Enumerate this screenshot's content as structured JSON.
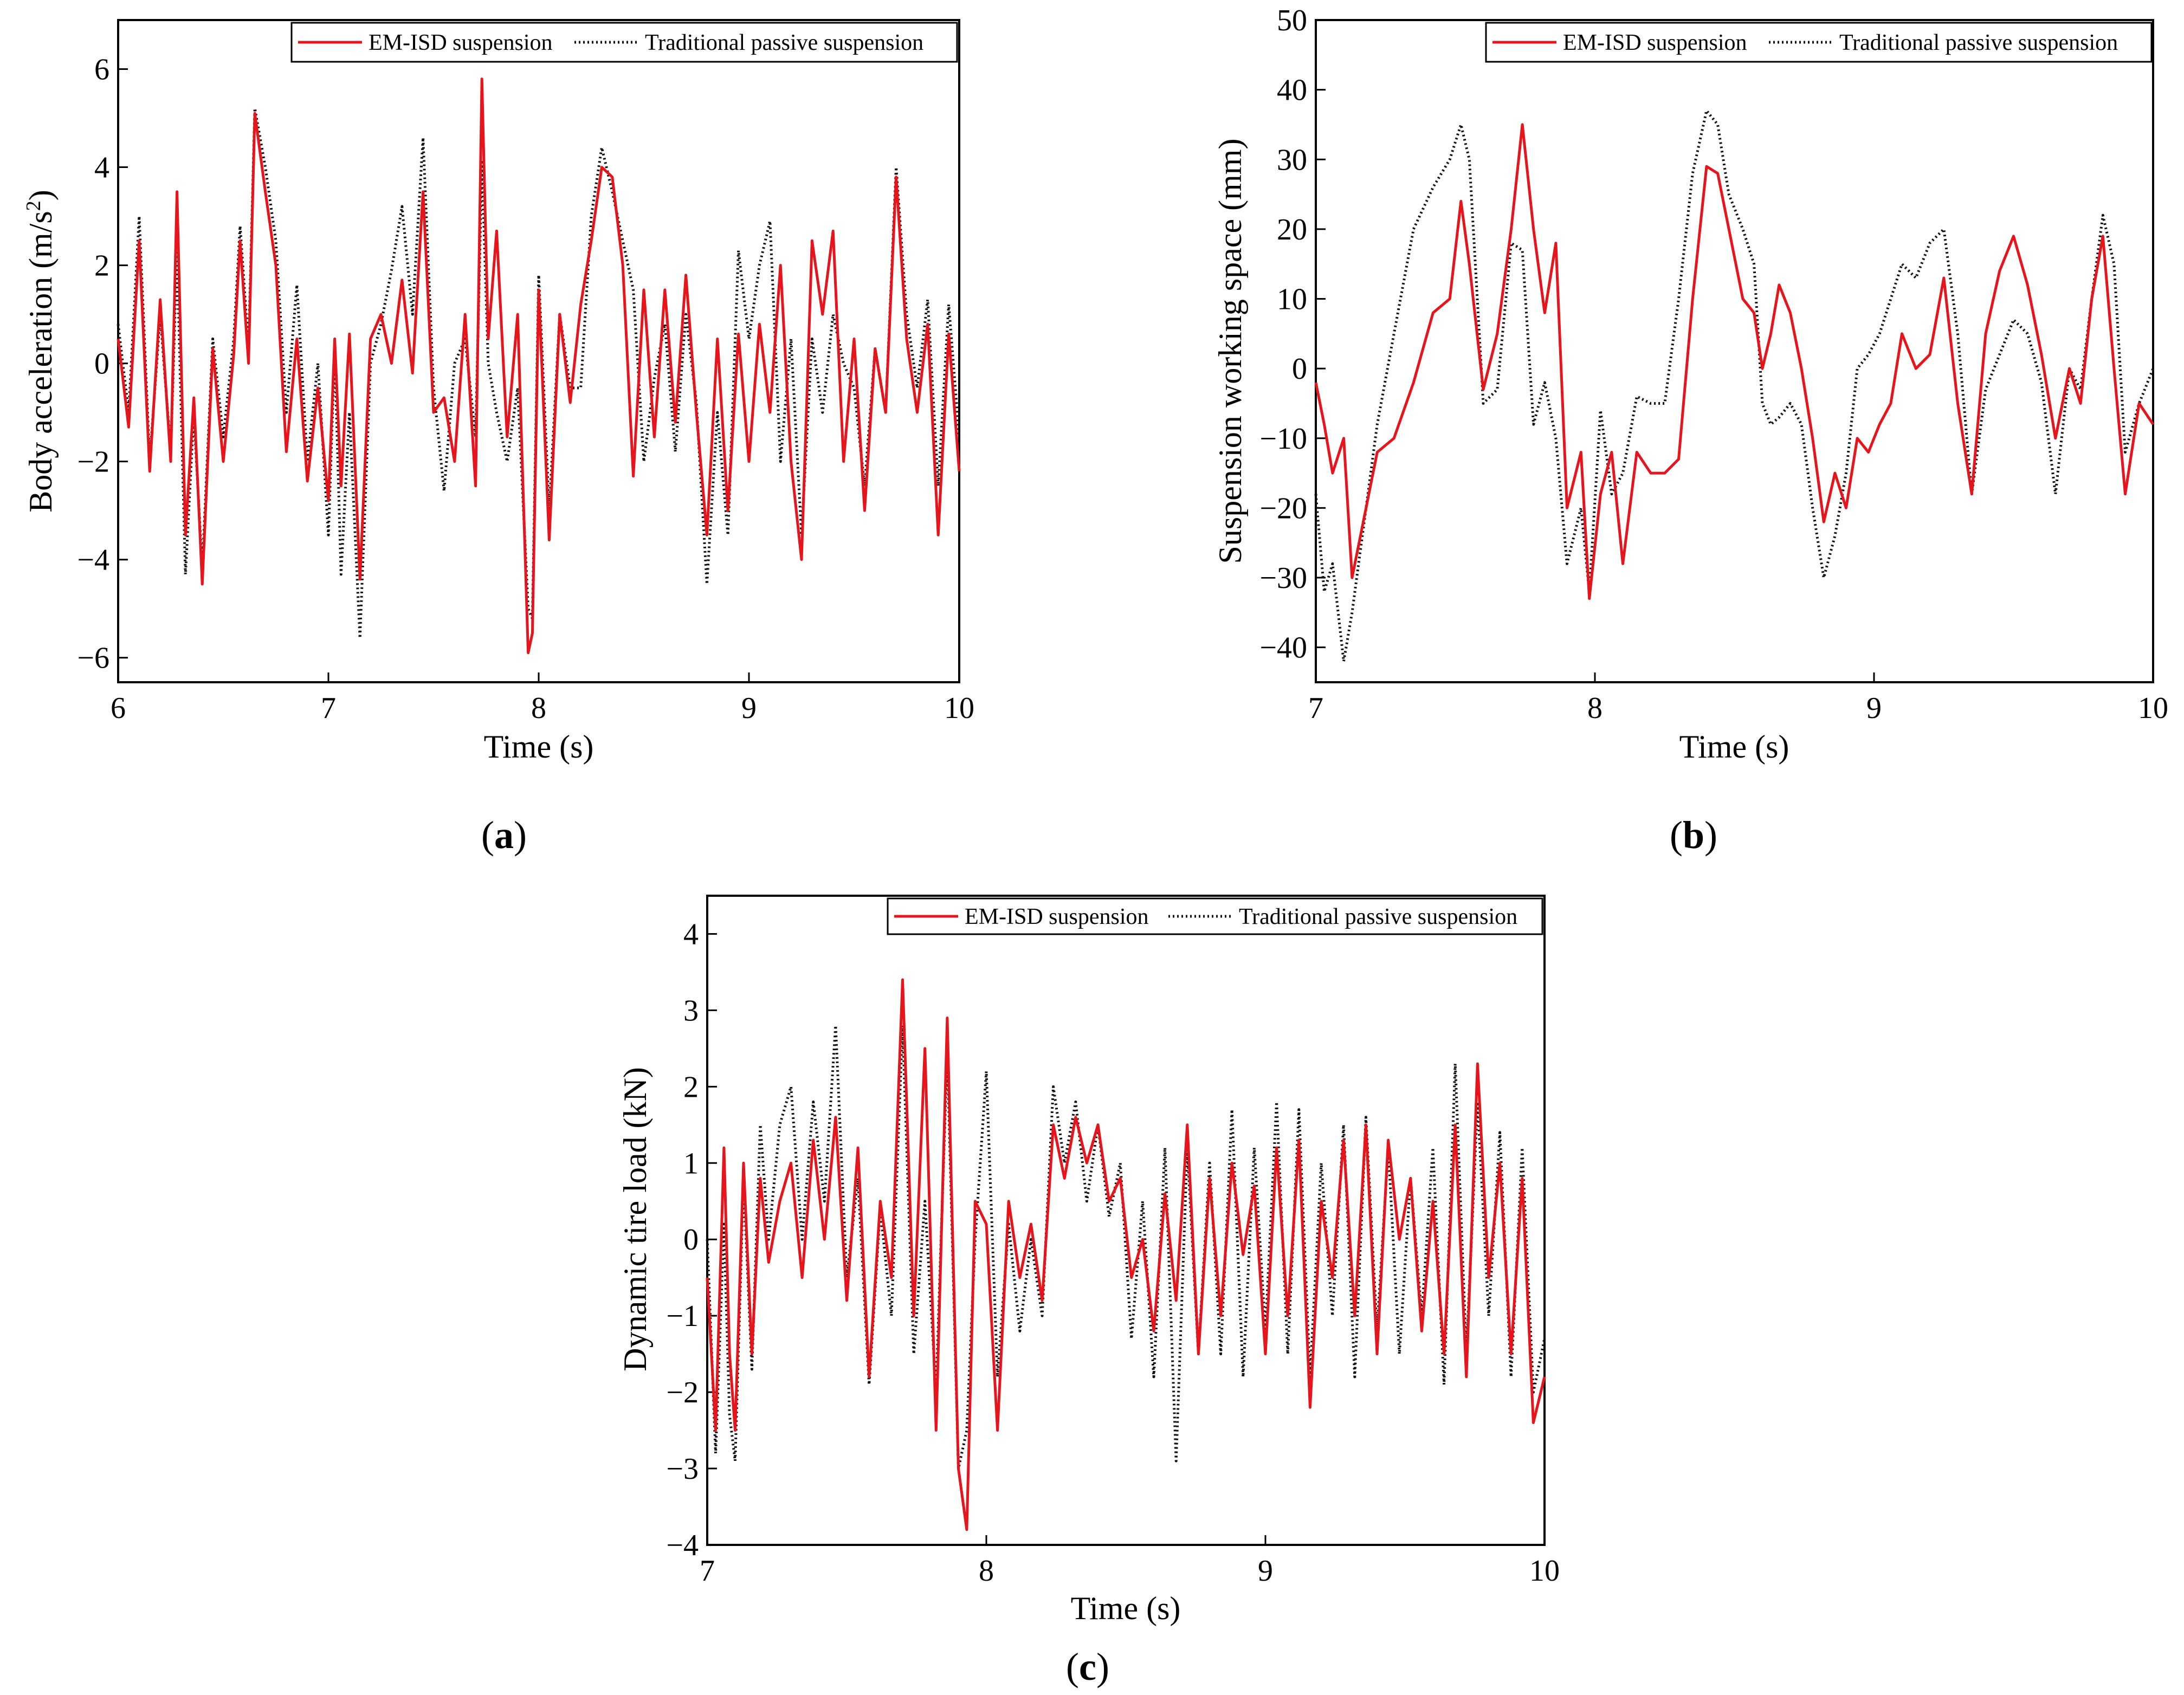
{
  "legend": {
    "em_label": "EM-ISD suspension",
    "tp_label": "Traditional passive suspension",
    "em_color": "#e8141b",
    "tp_color": "#111111"
  },
  "chart_data": [
    {
      "id": "a",
      "type": "line",
      "caption_letter": "a",
      "xlabel": "Time (s)",
      "ylabel_prefix": "Body acceleration (m/s",
      "ylabel_sup": "2",
      "ylabel_suffix": ")",
      "xlim": [
        6,
        10
      ],
      "ylim": [
        -6.5,
        7
      ],
      "xticks": [
        "6",
        "7",
        "8",
        "9",
        "10"
      ],
      "yticks": [
        "−6",
        "−4",
        "−2",
        "0",
        "2",
        "4",
        "6"
      ],
      "ytick_values": [
        -6,
        -4,
        -2,
        0,
        2,
        4,
        6
      ],
      "xtick_values": [
        6,
        7,
        8,
        9,
        10
      ],
      "legend_position": "top-right",
      "series": [
        {
          "name": "EM-ISD suspension",
          "x": [
            6.0,
            6.05,
            6.1,
            6.15,
            6.2,
            6.25,
            6.28,
            6.32,
            6.36,
            6.4,
            6.45,
            6.5,
            6.55,
            6.58,
            6.62,
            6.65,
            6.7,
            6.75,
            6.8,
            6.85,
            6.9,
            6.95,
            7.0,
            7.03,
            7.06,
            7.1,
            7.15,
            7.2,
            7.25,
            7.3,
            7.35,
            7.4,
            7.45,
            7.5,
            7.55,
            7.6,
            7.65,
            7.7,
            7.73,
            7.76,
            7.8,
            7.85,
            7.9,
            7.95,
            7.97,
            8.0,
            8.05,
            8.1,
            8.15,
            8.2,
            8.25,
            8.3,
            8.35,
            8.4,
            8.45,
            8.5,
            8.55,
            8.6,
            8.65,
            8.7,
            8.75,
            8.8,
            8.85,
            8.9,
            8.95,
            9.0,
            9.05,
            9.1,
            9.15,
            9.2,
            9.25,
            9.3,
            9.35,
            9.4,
            9.45,
            9.5,
            9.55,
            9.6,
            9.65,
            9.7,
            9.75,
            9.8,
            9.85,
            9.9,
            9.95,
            10.0
          ],
          "y": [
            0.5,
            -1.3,
            2.5,
            -2.2,
            1.3,
            -2.0,
            3.5,
            -3.5,
            -0.7,
            -4.5,
            0.3,
            -2.0,
            0.2,
            2.5,
            0.0,
            5.1,
            3.5,
            2.0,
            -1.8,
            0.5,
            -2.4,
            -0.5,
            -2.8,
            0.5,
            -2.5,
            0.6,
            -4.4,
            0.5,
            1.0,
            0.0,
            1.7,
            -0.2,
            3.5,
            -1.0,
            -0.7,
            -2.0,
            1.0,
            -2.5,
            5.8,
            0.5,
            2.7,
            -1.5,
            1.0,
            -5.9,
            -5.5,
            1.5,
            -3.6,
            1.0,
            -0.8,
            1.2,
            2.5,
            4.0,
            3.8,
            2.0,
            -2.3,
            1.5,
            -1.5,
            1.5,
            -1.2,
            1.8,
            -1.0,
            -3.5,
            0.5,
            -3.0,
            0.6,
            -2.0,
            0.8,
            -1.0,
            2.0,
            -2.0,
            -4.0,
            2.5,
            1.0,
            2.7,
            -2.0,
            0.5,
            -3.0,
            0.3,
            -1.0,
            3.8,
            0.5,
            -1.0,
            0.8,
            -3.5,
            0.6,
            -2.2
          ]
        },
        {
          "name": "Traditional passive suspension",
          "x": [
            6.0,
            6.05,
            6.1,
            6.15,
            6.2,
            6.25,
            6.28,
            6.32,
            6.36,
            6.4,
            6.45,
            6.5,
            6.55,
            6.58,
            6.62,
            6.65,
            6.7,
            6.75,
            6.8,
            6.85,
            6.9,
            6.95,
            7.0,
            7.03,
            7.06,
            7.1,
            7.15,
            7.2,
            7.25,
            7.3,
            7.35,
            7.4,
            7.45,
            7.5,
            7.55,
            7.6,
            7.65,
            7.7,
            7.73,
            7.76,
            7.8,
            7.85,
            7.9,
            7.95,
            7.97,
            8.0,
            8.05,
            8.1,
            8.15,
            8.2,
            8.25,
            8.3,
            8.35,
            8.4,
            8.45,
            8.5,
            8.55,
            8.6,
            8.65,
            8.7,
            8.75,
            8.8,
            8.85,
            8.9,
            8.95,
            9.0,
            9.05,
            9.1,
            9.15,
            9.2,
            9.25,
            9.3,
            9.35,
            9.4,
            9.45,
            9.5,
            9.55,
            9.6,
            9.65,
            9.7,
            9.75,
            9.8,
            9.85,
            9.9,
            9.95,
            10.0
          ],
          "y": [
            0.8,
            -1.0,
            3.0,
            -2.0,
            1.0,
            -1.8,
            2.3,
            -4.3,
            -1.0,
            -4.2,
            0.5,
            -1.5,
            0.5,
            2.8,
            0.3,
            5.2,
            4.0,
            2.5,
            -1.0,
            1.6,
            -2.0,
            0.0,
            -3.5,
            0.3,
            -4.3,
            -1.0,
            -5.6,
            0.0,
            0.8,
            1.9,
            3.2,
            1.0,
            4.6,
            -0.5,
            -2.6,
            0.0,
            0.5,
            -1.5,
            4.1,
            0.0,
            -1.0,
            -2.0,
            -0.5,
            -5.0,
            -5.2,
            1.8,
            -3.0,
            1.0,
            -0.5,
            -0.5,
            3.0,
            4.4,
            3.5,
            2.5,
            1.5,
            -2.0,
            -0.3,
            0.8,
            -1.8,
            1.0,
            -0.8,
            -4.5,
            -1.0,
            -3.5,
            2.3,
            0.5,
            2.0,
            2.9,
            -2.0,
            0.5,
            -3.5,
            0.5,
            -1.0,
            1.0,
            0.0,
            -0.5,
            -2.5,
            0.3,
            -1.0,
            4.0,
            1.0,
            -0.5,
            1.3,
            -2.5,
            1.2,
            -1.5
          ]
        }
      ]
    },
    {
      "id": "b",
      "type": "line",
      "caption_letter": "b",
      "xlabel": "Time (s)",
      "ylabel": "Suspension working space (mm)",
      "xlim": [
        7,
        10
      ],
      "ylim": [
        -45,
        50
      ],
      "xticks": [
        "7",
        "8",
        "9",
        "10"
      ],
      "xtick_values": [
        7,
        8,
        9,
        10
      ],
      "yticks": [
        "−40",
        "−30",
        "−20",
        "−10",
        "0",
        "10",
        "20",
        "30",
        "40",
        "50"
      ],
      "ytick_values": [
        -40,
        -30,
        -20,
        -10,
        0,
        10,
        20,
        30,
        40,
        50
      ],
      "legend_position": "top-right",
      "series": [
        {
          "name": "EM-ISD suspension",
          "x": [
            7.0,
            7.03,
            7.06,
            7.1,
            7.13,
            7.18,
            7.22,
            7.28,
            7.35,
            7.42,
            7.48,
            7.52,
            7.55,
            7.6,
            7.65,
            7.7,
            7.74,
            7.78,
            7.82,
            7.86,
            7.9,
            7.95,
            7.98,
            8.02,
            8.06,
            8.1,
            8.15,
            8.2,
            8.25,
            8.3,
            8.35,
            8.4,
            8.44,
            8.48,
            8.53,
            8.57,
            8.6,
            8.63,
            8.66,
            8.7,
            8.74,
            8.78,
            8.82,
            8.86,
            8.9,
            8.94,
            8.98,
            9.02,
            9.06,
            9.1,
            9.15,
            9.2,
            9.25,
            9.3,
            9.35,
            9.4,
            9.45,
            9.5,
            9.55,
            9.6,
            9.65,
            9.7,
            9.74,
            9.78,
            9.82,
            9.86,
            9.9,
            9.95,
            10.0
          ],
          "y": [
            -2,
            -8,
            -15,
            -10,
            -30,
            -20,
            -12,
            -10,
            -2,
            8,
            10,
            24,
            15,
            -3,
            5,
            20,
            35,
            20,
            8,
            18,
            -20,
            -12,
            -33,
            -18,
            -12,
            -28,
            -12,
            -15,
            -15,
            -13,
            10,
            29,
            28,
            20,
            10,
            8,
            0,
            5,
            12,
            8,
            0,
            -10,
            -22,
            -15,
            -20,
            -10,
            -12,
            -8,
            -5,
            5,
            0,
            2,
            13,
            -5,
            -18,
            5,
            14,
            19,
            12,
            2,
            -10,
            0,
            -5,
            10,
            19,
            0,
            -18,
            -5,
            -8
          ]
        },
        {
          "name": "Traditional passive suspension",
          "x": [
            7.0,
            7.03,
            7.06,
            7.1,
            7.13,
            7.18,
            7.22,
            7.28,
            7.35,
            7.42,
            7.48,
            7.52,
            7.55,
            7.6,
            7.65,
            7.7,
            7.74,
            7.78,
            7.82,
            7.86,
            7.9,
            7.95,
            7.98,
            8.02,
            8.06,
            8.1,
            8.15,
            8.2,
            8.25,
            8.3,
            8.35,
            8.4,
            8.44,
            8.48,
            8.53,
            8.57,
            8.6,
            8.63,
            8.66,
            8.7,
            8.74,
            8.78,
            8.82,
            8.86,
            8.9,
            8.94,
            8.98,
            9.02,
            9.06,
            9.1,
            9.15,
            9.2,
            9.25,
            9.3,
            9.35,
            9.4,
            9.45,
            9.5,
            9.55,
            9.6,
            9.65,
            9.7,
            9.74,
            9.78,
            9.82,
            9.86,
            9.9,
            9.95,
            10.0
          ],
          "y": [
            -18,
            -32,
            -28,
            -42,
            -35,
            -20,
            -8,
            5,
            20,
            26,
            30,
            35,
            30,
            -5,
            -3,
            18,
            17,
            -8,
            -2,
            -10,
            -28,
            -20,
            -32,
            -6,
            -18,
            -15,
            -4,
            -5,
            -5,
            10,
            28,
            37,
            35,
            25,
            20,
            15,
            -5,
            -8,
            -7,
            -5,
            -8,
            -20,
            -30,
            -24,
            -15,
            0,
            2,
            5,
            10,
            15,
            13,
            18,
            20,
            5,
            -18,
            -3,
            2,
            7,
            5,
            -2,
            -18,
            0,
            -3,
            10,
            22,
            15,
            -12,
            -5,
            0
          ]
        }
      ]
    },
    {
      "id": "c",
      "type": "line",
      "caption_letter": "c",
      "xlabel": "Time (s)",
      "ylabel": "Dynamic tire load (kN)",
      "xlim": [
        7,
        10
      ],
      "ylim": [
        -4,
        4.5
      ],
      "xticks": [
        "7",
        "8",
        "9",
        "10"
      ],
      "xtick_values": [
        7,
        8,
        9,
        10
      ],
      "yticks": [
        "−4",
        "−3",
        "−2",
        "−1",
        "0",
        "1",
        "2",
        "3",
        "4"
      ],
      "ytick_values": [
        -4,
        -3,
        -2,
        -1,
        0,
        1,
        2,
        3,
        4
      ],
      "legend_position": "top-right",
      "series": [
        {
          "name": "EM-ISD suspension",
          "x": [
            7.0,
            7.03,
            7.06,
            7.08,
            7.1,
            7.13,
            7.16,
            7.19,
            7.22,
            7.26,
            7.3,
            7.34,
            7.38,
            7.42,
            7.46,
            7.5,
            7.54,
            7.58,
            7.62,
            7.66,
            7.7,
            7.74,
            7.78,
            7.82,
            7.86,
            7.9,
            7.93,
            7.96,
            8.0,
            8.04,
            8.08,
            8.12,
            8.16,
            8.2,
            8.24,
            8.28,
            8.32,
            8.36,
            8.4,
            8.44,
            8.48,
            8.52,
            8.56,
            8.6,
            8.64,
            8.68,
            8.72,
            8.76,
            8.8,
            8.84,
            8.88,
            8.92,
            8.96,
            9.0,
            9.04,
            9.08,
            9.12,
            9.16,
            9.2,
            9.24,
            9.28,
            9.32,
            9.36,
            9.4,
            9.44,
            9.48,
            9.52,
            9.56,
            9.6,
            9.64,
            9.68,
            9.72,
            9.76,
            9.8,
            9.84,
            9.88,
            9.92,
            9.96,
            10.0
          ],
          "y": [
            -0.5,
            -2.5,
            1.2,
            -1.5,
            -2.5,
            1.0,
            -1.5,
            0.8,
            -0.3,
            0.5,
            1.0,
            -0.5,
            1.3,
            0.0,
            1.6,
            -0.8,
            1.2,
            -1.8,
            0.5,
            -0.5,
            3.4,
            -1.0,
            2.5,
            -2.5,
            2.9,
            -3.0,
            -3.8,
            0.5,
            0.2,
            -2.5,
            0.5,
            -0.5,
            0.2,
            -0.8,
            1.5,
            0.8,
            1.6,
            1.0,
            1.5,
            0.5,
            0.8,
            -0.5,
            0.0,
            -1.2,
            0.6,
            -0.8,
            1.5,
            -1.5,
            0.8,
            -1.0,
            1.0,
            -0.2,
            0.7,
            -1.5,
            1.2,
            -1.0,
            1.3,
            -2.2,
            0.5,
            -0.5,
            1.3,
            -1.0,
            1.5,
            -1.5,
            1.3,
            0.0,
            0.8,
            -1.2,
            0.5,
            -1.5,
            1.5,
            -1.8,
            2.3,
            -0.5,
            1.0,
            -1.5,
            0.8,
            -2.4,
            -1.8
          ]
        },
        {
          "name": "Traditional passive suspension",
          "x": [
            7.0,
            7.03,
            7.06,
            7.08,
            7.1,
            7.13,
            7.16,
            7.19,
            7.22,
            7.26,
            7.3,
            7.34,
            7.38,
            7.42,
            7.46,
            7.5,
            7.54,
            7.58,
            7.62,
            7.66,
            7.7,
            7.74,
            7.78,
            7.82,
            7.86,
            7.9,
            7.93,
            7.96,
            8.0,
            8.04,
            8.08,
            8.12,
            8.16,
            8.2,
            8.24,
            8.28,
            8.32,
            8.36,
            8.4,
            8.44,
            8.48,
            8.52,
            8.56,
            8.6,
            8.64,
            8.68,
            8.72,
            8.76,
            8.8,
            8.84,
            8.88,
            8.92,
            8.96,
            9.0,
            9.04,
            9.08,
            9.12,
            9.16,
            9.2,
            9.24,
            9.28,
            9.32,
            9.36,
            9.4,
            9.44,
            9.48,
            9.52,
            9.56,
            9.6,
            9.64,
            9.68,
            9.72,
            9.76,
            9.8,
            9.84,
            9.88,
            9.92,
            9.96,
            10.0
          ],
          "y": [
            0.0,
            -2.8,
            0.2,
            -2.3,
            -2.9,
            0.8,
            -1.7,
            1.5,
            0.0,
            1.5,
            2.0,
            0.0,
            1.8,
            0.5,
            2.8,
            -0.5,
            0.8,
            -1.9,
            0.4,
            -1.0,
            2.8,
            -1.5,
            0.5,
            -2.0,
            2.5,
            -3.0,
            -2.5,
            0.0,
            2.2,
            -1.8,
            0.2,
            -1.2,
            0.0,
            -1.0,
            2.0,
            1.0,
            1.8,
            0.5,
            1.5,
            0.3,
            1.0,
            -1.3,
            0.5,
            -1.8,
            1.2,
            -2.9,
            1.2,
            -1.5,
            1.0,
            -1.5,
            1.7,
            -1.8,
            1.2,
            -1.2,
            1.8,
            -1.5,
            1.7,
            -1.8,
            1.0,
            -1.0,
            1.5,
            -1.8,
            1.6,
            -1.2,
            1.2,
            -1.5,
            0.8,
            -1.0,
            1.2,
            -1.9,
            2.3,
            -1.5,
            1.8,
            -1.0,
            1.4,
            -1.8,
            1.2,
            -2.0,
            -1.3
          ]
        }
      ]
    }
  ]
}
